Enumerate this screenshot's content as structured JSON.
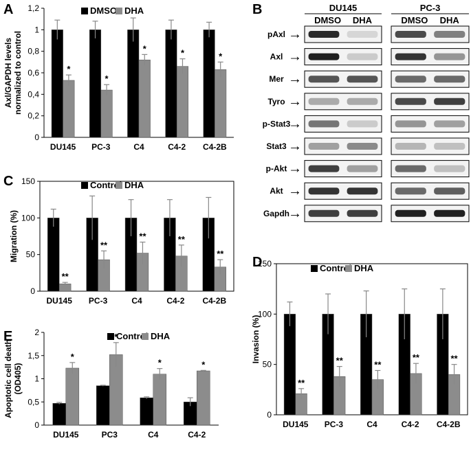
{
  "colors": {
    "control": "#000000",
    "treated": "#8c8c8c",
    "axis": "#000000"
  },
  "charts": [
    {
      "id": "A",
      "letter": "A",
      "type": "bar",
      "ylabel_lines": [
        "Axl/GAPDH levels",
        "normalized to control"
      ],
      "legend": [
        "DMSO",
        "DHA"
      ],
      "categories": [
        "DU145",
        "PC-3",
        "C4",
        "C4-2",
        "C4-2B"
      ],
      "series": [
        {
          "name": "DMSO",
          "values": [
            1.0,
            1.0,
            1.0,
            1.0,
            1.0
          ],
          "errors": [
            0.09,
            0.08,
            0.11,
            0.09,
            0.07
          ]
        },
        {
          "name": "DHA",
          "values": [
            0.53,
            0.44,
            0.72,
            0.66,
            0.63
          ],
          "errors": [
            0.05,
            0.05,
            0.05,
            0.07,
            0.07
          ]
        }
      ],
      "annotations": [
        "*",
        "*",
        "*",
        "*",
        "*"
      ],
      "ylim": [
        0,
        1.2
      ],
      "yticks": [
        0,
        0.2,
        0.4,
        0.6,
        0.8,
        1.0,
        1.2
      ],
      "ytick_labels": [
        "0",
        "0,2",
        "0,4",
        "0,6",
        "0,8",
        "1",
        "1,2"
      ]
    },
    {
      "id": "C",
      "letter": "C",
      "type": "bar",
      "ylabel_lines": [
        "Migration (%)"
      ],
      "legend": [
        "Control",
        "DHA"
      ],
      "categories": [
        "DU145",
        "PC-3",
        "C4",
        "C4-2",
        "C4-2B"
      ],
      "series": [
        {
          "name": "Control",
          "values": [
            100,
            100,
            100,
            100,
            100
          ],
          "errors": [
            12,
            30,
            25,
            25,
            28
          ]
        },
        {
          "name": "DHA",
          "values": [
            10,
            43,
            52,
            48,
            33
          ],
          "errors": [
            2,
            12,
            15,
            15,
            10
          ]
        }
      ],
      "annotations": [
        "**",
        "**",
        "**",
        "**",
        "**"
      ],
      "ylim": [
        0,
        150
      ],
      "yticks": [
        0,
        50,
        100,
        150
      ],
      "ytick_labels": [
        "0",
        "50",
        "100",
        "150"
      ]
    },
    {
      "id": "E",
      "letter": "E",
      "type": "bar",
      "ylabel_lines": [
        "Apoptotic cell death",
        "(OD405)"
      ],
      "legend": [
        "Control",
        "DHA"
      ],
      "categories": [
        "DU145",
        "PC3",
        "C4",
        "C4-2"
      ],
      "series": [
        {
          "name": "Control",
          "values": [
            0.47,
            0.85,
            0.59,
            0.5
          ],
          "errors": [
            0.02,
            0.01,
            0.02,
            0.09
          ]
        },
        {
          "name": "DHA",
          "values": [
            1.23,
            1.52,
            1.1,
            1.17
          ],
          "errors": [
            0.12,
            0.26,
            0.12,
            0.01
          ]
        }
      ],
      "annotations": [
        "*",
        "*",
        "*",
        "*"
      ],
      "ylim": [
        0,
        2
      ],
      "yticks": [
        0,
        0.5,
        1,
        1.5,
        2
      ],
      "ytick_labels": [
        "0",
        "0,5",
        "1",
        "1,5",
        "2"
      ]
    },
    {
      "id": "D",
      "letter": "D",
      "type": "bar",
      "ylabel_lines": [
        "Invasion (%)"
      ],
      "legend": [
        "Control",
        "DHA"
      ],
      "categories": [
        "DU145",
        "PC-3",
        "C4",
        "C4-2",
        "C4-2B"
      ],
      "series": [
        {
          "name": "Control",
          "values": [
            100,
            100,
            100,
            100,
            100
          ],
          "errors": [
            12,
            20,
            23,
            25,
            25
          ]
        },
        {
          "name": "DHA",
          "values": [
            21,
            38,
            35,
            41,
            40
          ],
          "errors": [
            5,
            10,
            9,
            10,
            10
          ]
        }
      ],
      "annotations": [
        "**",
        "**",
        "**",
        "**",
        "**"
      ],
      "ylim": [
        0,
        150
      ],
      "yticks": [
        0,
        50,
        100,
        150
      ],
      "ytick_labels": [
        "0",
        "50",
        "100",
        "150"
      ]
    }
  ],
  "blot": {
    "letter": "B",
    "groups": [
      {
        "name": "DU145",
        "conditions": [
          "DMSO",
          "DHA"
        ]
      },
      {
        "name": "PC-3",
        "conditions": [
          "DMSO",
          "DHA"
        ]
      }
    ],
    "rows": [
      "pAxl",
      "Axl",
      "Mer",
      "Tyro",
      "p-Stat3",
      "Stat3",
      "p-Akt",
      "Akt",
      "Gapdh"
    ],
    "arrow": "→",
    "intensity": [
      [
        0.9,
        0.1,
        0.75,
        0.5
      ],
      [
        0.95,
        0.15,
        0.85,
        0.4
      ],
      [
        0.7,
        0.7,
        0.6,
        0.6
      ],
      [
        0.3,
        0.3,
        0.75,
        0.8
      ],
      [
        0.55,
        0.15,
        0.4,
        0.35
      ],
      [
        0.35,
        0.45,
        0.25,
        0.2
      ],
      [
        0.8,
        0.35,
        0.6,
        0.2
      ],
      [
        0.85,
        0.85,
        0.6,
        0.65
      ],
      [
        0.8,
        0.8,
        0.95,
        0.95
      ]
    ]
  }
}
